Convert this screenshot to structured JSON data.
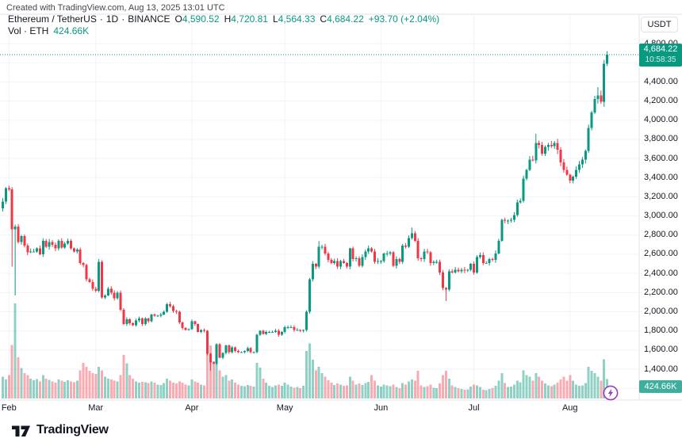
{
  "attribution": "Created with TradingView.com, Aug 13, 2025 13:01 UTC",
  "legend": {
    "symbol": "Ethereum / TetherUS",
    "separator": "·",
    "interval": "1D",
    "exchange": "BINANCE",
    "ohlc": [
      {
        "label": "O",
        "value": "4,590.52"
      },
      {
        "label": "H",
        "value": "4,720.81"
      },
      {
        "label": "L",
        "value": "4,564.33"
      },
      {
        "label": "C",
        "value": "4,684.22"
      }
    ],
    "change": "+93.70 (+2.04%)",
    "volume_row": {
      "label": "Vol · ETH",
      "value": "424.66K"
    }
  },
  "price_axis": {
    "currency": "USDT",
    "ticks": [
      {
        "label": "4,800.00",
        "value": 4800
      },
      {
        "label": "4,600.00",
        "value": 4600
      },
      {
        "label": "4,400.00",
        "value": 4400
      },
      {
        "label": "4,200.00",
        "value": 4200
      },
      {
        "label": "4,000.00",
        "value": 4000
      },
      {
        "label": "3,800.00",
        "value": 3800
      },
      {
        "label": "3,600.00",
        "value": 3600
      },
      {
        "label": "3,400.00",
        "value": 3400
      },
      {
        "label": "3,200.00",
        "value": 3200
      },
      {
        "label": "3,000.00",
        "value": 3000
      },
      {
        "label": "2,800.00",
        "value": 2800
      },
      {
        "label": "2,600.00",
        "value": 2600
      },
      {
        "label": "2,400.00",
        "value": 2400
      },
      {
        "label": "2,200.00",
        "value": 2200
      },
      {
        "label": "2,000.00",
        "value": 2000
      },
      {
        "label": "1,800.00",
        "value": 1800
      },
      {
        "label": "1,600.00",
        "value": 1600
      },
      {
        "label": "1,400.00",
        "value": 1400
      }
    ],
    "unlabeled_grid_values": [
      1200
    ],
    "price_label": {
      "text": "4,684.22",
      "countdown": "10:58:35",
      "value": 4684.22
    },
    "volume_label": "424.66K"
  },
  "time_axis": {
    "months": [
      {
        "label": "Feb",
        "candle_index": 2
      },
      {
        "label": "Mar",
        "candle_index": 30
      },
      {
        "label": "Apr",
        "candle_index": 61
      },
      {
        "label": "May",
        "candle_index": 91
      },
      {
        "label": "Jun",
        "candle_index": 122
      },
      {
        "label": "Jul",
        "candle_index": 152
      },
      {
        "label": "Aug",
        "candle_index": 183
      }
    ]
  },
  "footer": {
    "logo_text": "TradingView"
  },
  "colors": {
    "up": "#089981",
    "down": "#F23645",
    "up_volume": "rgba(8,153,129,0.45)",
    "down_volume": "rgba(242,54,69,0.42)",
    "grid": "#F0F3FA",
    "frame": "#E0E3EB",
    "text": "#131722",
    "label_bg": "#089981",
    "flash_purple": "#9C3BBE",
    "background": "#FFFFFF"
  },
  "chart_data": {
    "type": "candlestick",
    "title": "Ethereum / TetherUS",
    "exchange": "BINANCE",
    "interval": "1D",
    "quote_currency": "USDT",
    "visible_range": {
      "start": "2025-01-30",
      "end": "2025-08-13"
    },
    "y_axis_labels": [
      4800,
      4600,
      4400,
      4200,
      4000,
      3800,
      3600,
      3400,
      3200,
      3000,
      2800,
      2600,
      2400,
      2200,
      2000,
      1800,
      1600,
      1400
    ],
    "current_price": 4684.22,
    "current_volume_k": 424.66,
    "countdown": "10:58:35",
    "last_candle": {
      "open": 4590.52,
      "high": 4720.81,
      "low": 4564.33,
      "close": 4684.22,
      "change": 93.7,
      "change_pct": 2.04
    },
    "first_open": 3080,
    "closes": [
      3150,
      3290,
      3280,
      2860,
      2890,
      2730,
      2790,
      2690,
      2620,
      2630,
      2630,
      2660,
      2600,
      2740,
      2680,
      2730,
      2700,
      2660,
      2740,
      2670,
      2710,
      2740,
      2660,
      2630,
      2650,
      2510,
      2490,
      2340,
      2310,
      2240,
      2220,
      2520,
      2150,
      2170,
      2240,
      2200,
      2140,
      2200,
      2020,
      1870,
      1920,
      1880,
      1860,
      1910,
      1930,
      1870,
      1930,
      1900,
      1970,
      1960,
      1960,
      1970,
      2000,
      2080,
      2060,
      2010,
      2000,
      1890,
      1830,
      1810,
      1820,
      1900,
      1870,
      1790,
      1810,
      1800,
      1560,
      1470,
      1460,
      1660,
      1520,
      1570,
      1650,
      1580,
      1630,
      1590,
      1580,
      1580,
      1590,
      1620,
      1580,
      1580,
      1760,
      1800,
      1770,
      1790,
      1790,
      1790,
      1800,
      1760,
      1790,
      1840,
      1840,
      1840,
      1810,
      1810,
      1800,
      1810,
      2000,
      2340,
      2500,
      2470,
      2680,
      2680,
      2610,
      2540,
      2510,
      2530,
      2470,
      2530,
      2510,
      2470,
      2660,
      2550,
      2560,
      2480,
      2570,
      2630,
      2660,
      2630,
      2520,
      2530,
      2530,
      2610,
      2610,
      2620,
      2480,
      2550,
      2520,
      2690,
      2680,
      2770,
      2820,
      2740,
      2560,
      2550,
      2630,
      2620,
      2510,
      2520,
      2520,
      2410,
      2250,
      2230,
      2420,
      2410,
      2440,
      2420,
      2440,
      2430,
      2440,
      2500,
      2410,
      2570,
      2590,
      2510,
      2510,
      2550,
      2540,
      2610,
      2740,
      2960,
      2950,
      2950,
      2960,
      3010,
      3140,
      3160,
      3390,
      3480,
      3590,
      3580,
      3760,
      3740,
      3650,
      3720,
      3740,
      3730,
      3760,
      3690,
      3560,
      3480,
      3430,
      3370,
      3410,
      3480,
      3540,
      3590,
      3680,
      3920,
      4080,
      4220,
      4260,
      4190,
      4590,
      4684.22
    ],
    "volumes_k": [
      480,
      420,
      520,
      1180,
      2100,
      910,
      670,
      560,
      520,
      440,
      400,
      430,
      380,
      520,
      440,
      410,
      380,
      350,
      420,
      390,
      370,
      400,
      380,
      360,
      390,
      620,
      790,
      700,
      610,
      560,
      540,
      700,
      620,
      480,
      440,
      420,
      390,
      380,
      520,
      960,
      780,
      520,
      440,
      380,
      350,
      370,
      360,
      340,
      380,
      350,
      310,
      300,
      340,
      440,
      390,
      350,
      330,
      380,
      350,
      310,
      290,
      420,
      380,
      350,
      310,
      290,
      1050,
      1170,
      820,
      1130,
      620,
      480,
      520,
      390,
      420,
      350,
      310,
      280,
      270,
      300,
      280,
      260,
      790,
      680,
      440,
      350,
      280,
      250,
      290,
      310,
      280,
      350,
      310,
      260,
      240,
      250,
      230,
      280,
      1050,
      1220,
      860,
      620,
      700,
      560,
      480,
      400,
      350,
      300,
      330,
      310,
      280,
      290,
      480,
      390,
      310,
      330,
      300,
      340,
      370,
      520,
      390,
      290,
      260,
      310,
      290,
      270,
      310,
      250,
      230,
      340,
      310,
      380,
      420,
      390,
      610,
      290,
      250,
      270,
      310,
      240,
      230,
      330,
      520,
      610,
      440,
      290,
      250,
      230,
      210,
      190,
      200,
      260,
      310,
      290,
      250,
      190,
      180,
      210,
      230,
      280,
      390,
      560,
      340,
      250,
      260,
      310,
      390,
      360,
      620,
      520,
      480,
      390,
      560,
      480,
      390,
      330,
      290,
      270,
      310,
      350,
      420,
      480,
      390,
      520,
      390,
      310,
      280,
      290,
      340,
      700,
      610,
      560,
      480,
      390,
      870,
      424.66
    ],
    "wick_overrides": {
      "3": {
        "low": 2470
      },
      "4": {
        "low": 2170
      },
      "31": {
        "high": 2550
      },
      "67": {
        "low": 1385
      },
      "102": {
        "high": 2738
      },
      "132": {
        "high": 2879
      },
      "143": {
        "low": 2113
      },
      "172": {
        "high": 3858
      },
      "192": {
        "high": 4345
      },
      "195": {
        "high": 4720.81,
        "low": 4564.33
      }
    }
  }
}
